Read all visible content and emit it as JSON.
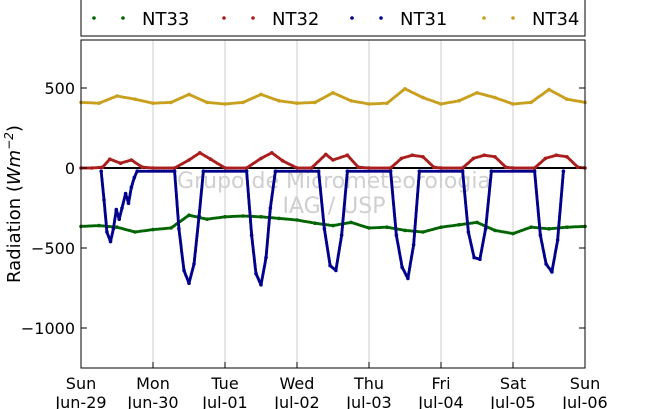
{
  "chart_data": {
    "type": "scatter",
    "title": "",
    "xlabel": "",
    "ylabel_main": "Radiation (",
    "ylabel_math": "Wm",
    "ylabel_exp": "−2",
    "ylabel_close": ")",
    "ylim": [
      -1250,
      800
    ],
    "xlim": [
      0,
      7
    ],
    "grid": true,
    "legend_placement": "top",
    "yticks": [
      500,
      0,
      -500,
      -1000
    ],
    "ytick_labels": [
      "500",
      "0",
      "−500",
      "−1000"
    ],
    "xticks": [
      {
        "day": "Sun",
        "date": "Jun-29"
      },
      {
        "day": "Mon",
        "date": "Jun-30"
      },
      {
        "day": "Tue",
        "date": "Jul-01"
      },
      {
        "day": "Wed",
        "date": "Jul-02"
      },
      {
        "day": "Thu",
        "date": "Jul-03"
      },
      {
        "day": "Fri",
        "date": "Jul-04"
      },
      {
        "day": "Sat",
        "date": "Jul-05"
      },
      {
        "day": "Sun",
        "date": "Jul-06"
      }
    ],
    "watermark": [
      "Grupo de Micrometeorologia",
      "IAG / USP"
    ],
    "series": [
      {
        "name": "NT33",
        "color": "#006400",
        "x": [
          0,
          0.25,
          0.5,
          0.75,
          1,
          1.25,
          1.5,
          1.75,
          2,
          2.25,
          2.5,
          2.75,
          3,
          3.25,
          3.5,
          3.75,
          4,
          4.25,
          4.5,
          4.75,
          5,
          5.25,
          5.5,
          5.75,
          6,
          6.25,
          6.5,
          6.75,
          7
        ],
        "values": [
          -365,
          -360,
          -370,
          -400,
          -385,
          -375,
          -295,
          -320,
          -305,
          -300,
          -305,
          -315,
          -325,
          -345,
          -360,
          -340,
          -375,
          -370,
          -390,
          -400,
          -370,
          -355,
          -340,
          -390,
          -410,
          -370,
          -380,
          -370,
          -365
        ]
      },
      {
        "name": "NT32",
        "color": "#aa1e1e",
        "x": [
          0,
          0.15,
          0.3,
          0.4,
          0.55,
          0.7,
          0.85,
          1,
          1.3,
          1.5,
          1.65,
          1.8,
          2,
          2.3,
          2.5,
          2.65,
          2.8,
          3,
          3.2,
          3.4,
          3.5,
          3.7,
          3.85,
          4,
          4.3,
          4.45,
          4.6,
          4.75,
          4.9,
          5,
          5.3,
          5.45,
          5.6,
          5.75,
          5.9,
          6,
          6.3,
          6.45,
          6.6,
          6.75,
          6.9,
          7
        ],
        "values": [
          0,
          0,
          5,
          55,
          30,
          50,
          5,
          0,
          0,
          50,
          95,
          55,
          0,
          0,
          60,
          95,
          45,
          0,
          0,
          85,
          50,
          80,
          5,
          0,
          0,
          60,
          80,
          70,
          5,
          0,
          0,
          60,
          80,
          70,
          5,
          0,
          0,
          60,
          80,
          70,
          5,
          0
        ]
      },
      {
        "name": "NT31",
        "color": "#00008b",
        "x": [
          0.28,
          0.32,
          0.36,
          0.41,
          0.45,
          0.49,
          0.53,
          0.57,
          0.62,
          0.66,
          0.7,
          0.74,
          0.78,
          1.3,
          1.36,
          1.43,
          1.5,
          1.57,
          1.64,
          1.7,
          2.3,
          2.37,
          2.43,
          2.5,
          2.57,
          2.63,
          2.7,
          3.3,
          3.38,
          3.46,
          3.54,
          3.62,
          3.7,
          4.3,
          4.38,
          4.46,
          4.54,
          4.62,
          4.7,
          5.3,
          5.38,
          5.46,
          5.54,
          5.62,
          5.7,
          6.3,
          6.38,
          6.46,
          6.54,
          6.62,
          6.7
        ],
        "values": [
          -20,
          -200,
          -400,
          -460,
          -380,
          -260,
          -320,
          -250,
          -160,
          -220,
          -120,
          -60,
          -20,
          -20,
          -380,
          -640,
          -720,
          -600,
          -300,
          -20,
          -20,
          -420,
          -660,
          -730,
          -560,
          -250,
          -20,
          -20,
          -380,
          -610,
          -640,
          -420,
          -20,
          -20,
          -420,
          -620,
          -690,
          -480,
          -20,
          -20,
          -400,
          -560,
          -570,
          -380,
          -20,
          -20,
          -420,
          -600,
          -650,
          -450,
          -20
        ]
      },
      {
        "name": "NT34",
        "color": "#c9a01e",
        "x": [
          0,
          0.25,
          0.5,
          0.75,
          1,
          1.25,
          1.5,
          1.75,
          2,
          2.25,
          2.5,
          2.75,
          3,
          3.25,
          3.5,
          3.75,
          4,
          4.25,
          4.5,
          4.75,
          5,
          5.25,
          5.5,
          5.75,
          6,
          6.25,
          6.5,
          6.75,
          7
        ],
        "values": [
          410,
          405,
          450,
          430,
          405,
          410,
          460,
          410,
          400,
          410,
          460,
          420,
          405,
          410,
          470,
          420,
          400,
          405,
          495,
          440,
          400,
          420,
          470,
          440,
          400,
          410,
          490,
          430,
          410
        ]
      }
    ],
    "zero_line": 0
  }
}
